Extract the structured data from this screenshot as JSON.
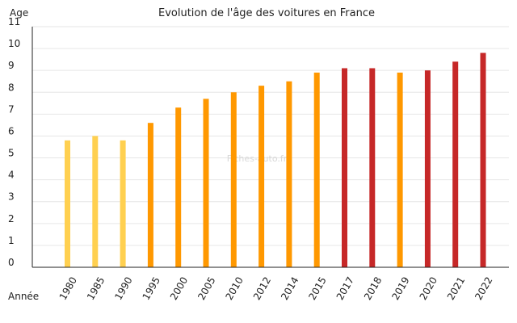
{
  "chart_data": {
    "type": "bar",
    "title": "Evolution de l'âge des voitures en France",
    "ylabel": "Age",
    "xlabel": "Année",
    "watermark": "Fiches-auto.fr",
    "ylim": [
      0,
      11
    ],
    "yticks": [
      0,
      1,
      2,
      3,
      4,
      5,
      6,
      7,
      8,
      9,
      10,
      11
    ],
    "grid": true,
    "categories": [
      "1980",
      "1985",
      "1990",
      "1995",
      "2000",
      "2005",
      "2010",
      "2012",
      "2014",
      "2015",
      "2017",
      "2018",
      "2019",
      "2020",
      "2021",
      "2022"
    ],
    "values": [
      5.8,
      6.0,
      5.8,
      6.6,
      7.3,
      7.7,
      8.0,
      8.3,
      8.5,
      8.9,
      9.1,
      9.1,
      8.9,
      9.0,
      9.4,
      9.8
    ],
    "bar_colors": [
      "#ffd050",
      "#ffd050",
      "#ffd050",
      "#ff9800",
      "#ff9800",
      "#ff9800",
      "#ff9800",
      "#ff9800",
      "#ff9800",
      "#ff9800",
      "#c62828",
      "#c62828",
      "#ff9800",
      "#c62828",
      "#c62828",
      "#c62828"
    ]
  }
}
